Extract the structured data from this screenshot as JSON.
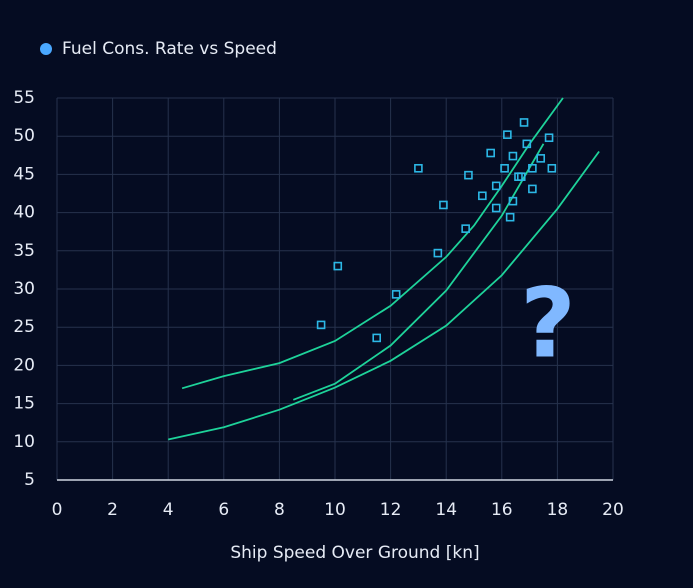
{
  "chart_data": {
    "type": "scatter",
    "x_label": "Ship Speed Over Ground [kn]",
    "xlim": [
      0,
      20
    ],
    "xticks": [
      0,
      2,
      4,
      6,
      8,
      10,
      12,
      14,
      16,
      18,
      20
    ],
    "ylim": [
      5,
      55
    ],
    "yticks": [
      5,
      10,
      15,
      20,
      25,
      30,
      35,
      40,
      45,
      50,
      55
    ],
    "grid": true,
    "legend": "top-left",
    "series": [
      {
        "name": "Fuel Cons. Rate vs Speed",
        "color": "#2cb8e6",
        "legend_color": "#4aa8ff",
        "x": [
          9.5,
          10.1,
          11.5,
          12.2,
          13.0,
          13.7,
          13.9,
          14.7,
          14.8,
          15.3,
          15.6,
          15.8,
          15.8,
          16.1,
          16.2,
          16.3,
          16.4,
          16.4,
          16.6,
          16.7,
          16.8,
          16.9,
          17.1,
          17.1,
          17.4,
          17.8,
          17.7
        ],
        "values": [
          25.3,
          33,
          23.6,
          29.3,
          45.8,
          34.7,
          41,
          37.9,
          44.9,
          42.2,
          47.8,
          43.5,
          40.6,
          45.8,
          50.2,
          39.4,
          41.5,
          47.4,
          44.7,
          44.7,
          51.8,
          49,
          43.1,
          45.8,
          47.1,
          45.8,
          49.8
        ]
      }
    ],
    "curves": [
      {
        "color": "#1ed39a",
        "x": [
          4.5,
          6,
          8,
          10,
          12,
          14,
          15,
          16,
          17,
          18.2
        ],
        "values": [
          17,
          18.6,
          20.3,
          23.2,
          27.8,
          34.2,
          38.3,
          43.5,
          49,
          55
        ]
      },
      {
        "color": "#1ed39a",
        "x": [
          4,
          6,
          8,
          10,
          12,
          14,
          16,
          18,
          19.5
        ],
        "values": [
          10.3,
          11.9,
          14.2,
          17.1,
          20.6,
          25.2,
          31.8,
          40.5,
          48
        ]
      },
      {
        "color": "#1ed39a",
        "x": [
          8.5,
          10,
          12,
          14,
          16,
          17.5
        ],
        "values": [
          15.5,
          17.6,
          22.6,
          29.8,
          39.6,
          49
        ]
      }
    ],
    "annotation": "?",
    "annotation_color": "#80b8ff"
  }
}
